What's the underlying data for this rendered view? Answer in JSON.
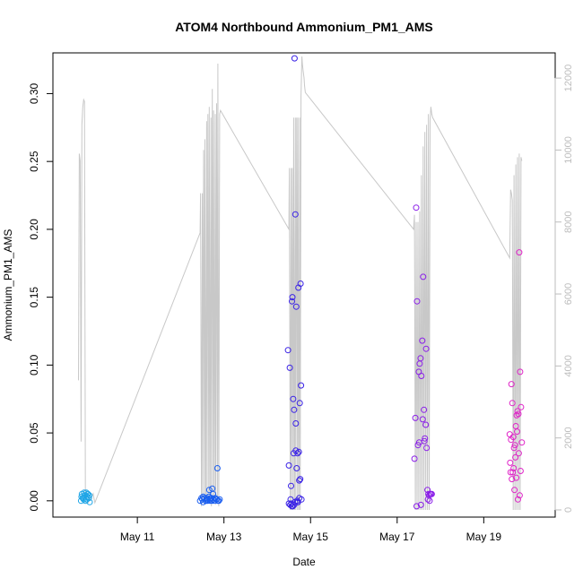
{
  "chart_data": {
    "type": "scatter",
    "title": "ATOM4 Northbound Ammonium_PM1_AMS",
    "xlabel": "Date",
    "ylabel": "Ammonium_PM1_AMS",
    "x_unit": "day of May",
    "xlim": [
      9.05,
      20.65
    ],
    "ylim": [
      -0.012,
      0.33
    ],
    "y2lim": [
      -200,
      12700
    ],
    "x_ticks": [
      {
        "value": 11,
        "label": "May 11"
      },
      {
        "value": 13,
        "label": "May 13"
      },
      {
        "value": 15,
        "label": "May 15"
      },
      {
        "value": 17,
        "label": "May 17"
      },
      {
        "value": 19,
        "label": "May 19"
      }
    ],
    "y_ticks": [
      {
        "value": 0.0,
        "label": "0.00"
      },
      {
        "value": 0.05,
        "label": "0.05"
      },
      {
        "value": 0.1,
        "label": "0.10"
      },
      {
        "value": 0.15,
        "label": "0.15"
      },
      {
        "value": 0.2,
        "label": "0.20"
      },
      {
        "value": 0.25,
        "label": "0.25"
      },
      {
        "value": 0.3,
        "label": "0.30"
      }
    ],
    "y2_ticks": [
      {
        "value": 0,
        "label": "0"
      },
      {
        "value": 2000,
        "label": "2000"
      },
      {
        "value": 4000,
        "label": "4000"
      },
      {
        "value": 6000,
        "label": "6000"
      },
      {
        "value": 8000,
        "label": "8000"
      },
      {
        "value": 10000,
        "label": "10000"
      },
      {
        "value": 12000,
        "label": "12000"
      }
    ],
    "grid": false,
    "legend": "none",
    "colors": {
      "altitude_line": "#c8c8c8",
      "flight1": "#1ea5e6",
      "flight2": "#1a5ef0",
      "flight3": "#3a22e6",
      "flight4": "#8a1ee8",
      "flight5": "#e024c8",
      "axis": "#000000",
      "right_axis": "#bdbdbd"
    },
    "points": [
      {
        "flight": 1,
        "color": "#1ea5e6",
        "x": [
          9.7,
          9.72,
          9.74,
          9.76,
          9.78,
          9.8,
          9.82,
          9.84,
          9.86,
          9.88,
          9.9,
          9.71,
          9.77,
          9.83,
          9.89,
          9.75,
          9.85
        ],
        "y": [
          0.0,
          0.005,
          0.002,
          0.001,
          0.004,
          0.0,
          0.006,
          0.003,
          0.005,
          0.002,
          -0.001,
          0.003,
          0.006,
          0.001,
          0.004,
          0.002,
          0.005
        ]
      },
      {
        "flight": 2,
        "color": "#1a5ef0",
        "x": [
          12.45,
          12.5,
          12.52,
          12.55,
          12.58,
          12.6,
          12.62,
          12.65,
          12.68,
          12.7,
          12.72,
          12.75,
          12.78,
          12.8,
          12.82,
          12.85,
          12.88,
          12.9,
          12.52,
          12.6,
          12.68,
          12.75,
          12.83,
          12.48,
          12.58,
          12.66,
          12.73,
          12.86,
          12.63,
          12.71
        ],
        "y": [
          0.0,
          0.001,
          -0.001,
          0.002,
          0.0,
          0.001,
          0.0,
          0.003,
          0.001,
          0.002,
          0.0,
          0.001,
          0.0,
          0.002,
          0.001,
          0.024,
          0.0,
          0.001,
          0.003,
          0.002,
          0.0,
          0.005,
          0.001,
          0.002,
          0.0,
          0.008,
          0.009,
          0.0,
          0.001,
          0.002
        ]
      },
      {
        "flight": 3,
        "color": "#3a22e6",
        "x": [
          14.48,
          14.5,
          14.52,
          14.55,
          14.57,
          14.58,
          14.6,
          14.62,
          14.63,
          14.65,
          14.67,
          14.7,
          14.72,
          14.73,
          14.75,
          14.77,
          14.78,
          14.53,
          14.56,
          14.61,
          14.64,
          14.68,
          14.71,
          14.74,
          14.5,
          14.59,
          14.66,
          14.7,
          14.76,
          14.54,
          14.62,
          14.69,
          14.74,
          14.57,
          14.66,
          14.79
        ],
        "y": [
          0.111,
          0.026,
          0.098,
          0.011,
          0.147,
          0.15,
          0.075,
          0.067,
          0.326,
          0.211,
          0.143,
          0.035,
          0.157,
          0.036,
          0.072,
          0.16,
          0.085,
          -0.003,
          -0.002,
          0.035,
          -0.001,
          0.024,
          -0.001,
          0.015,
          -0.002,
          -0.004,
          0.057,
          -0.001,
          0.016,
          0.001,
          -0.003,
          0.0,
          0.002,
          -0.004,
          0.037,
          0.001
        ]
      },
      {
        "flight": 4,
        "color": "#8a1ee8",
        "x": [
          17.4,
          17.42,
          17.44,
          17.46,
          17.48,
          17.5,
          17.52,
          17.54,
          17.56,
          17.58,
          17.6,
          17.62,
          17.64,
          17.66,
          17.68,
          17.7,
          17.72,
          17.74,
          17.76,
          17.78,
          17.8,
          17.45,
          17.55,
          17.63,
          17.71,
          17.51,
          17.59,
          17.67,
          17.75
        ],
        "y": [
          0.031,
          0.061,
          0.216,
          0.147,
          0.041,
          0.095,
          0.101,
          0.105,
          0.092,
          0.118,
          0.165,
          0.067,
          0.046,
          0.056,
          0.039,
          0.008,
          0.005,
          0.004,
          0.005,
          0.005,
          0.005,
          -0.004,
          -0.003,
          0.044,
          0.001,
          0.043,
          0.06,
          0.112,
          0.0
        ]
      },
      {
        "flight": 5,
        "color": "#e024c8",
        "x": [
          19.6,
          19.62,
          19.64,
          19.66,
          19.68,
          19.7,
          19.72,
          19.74,
          19.76,
          19.78,
          19.8,
          19.82,
          19.84,
          19.86,
          19.65,
          19.69,
          19.73,
          19.77,
          19.81,
          19.85,
          19.63,
          19.67,
          19.71,
          19.75,
          19.79,
          19.83,
          19.61,
          19.88
        ],
        "y": [
          0.049,
          0.021,
          0.086,
          0.072,
          0.047,
          0.039,
          0.041,
          0.055,
          0.063,
          0.066,
          0.064,
          0.183,
          0.095,
          0.069,
          0.016,
          0.024,
          0.032,
          0.051,
          0.035,
          0.022,
          0.045,
          0.021,
          0.008,
          0.017,
          0.001,
          0.004,
          0.028,
          0.043
        ]
      }
    ],
    "altitude_line": {
      "x": [
        9.64,
        9.66,
        9.68,
        9.7,
        9.72,
        9.74,
        9.76,
        9.78,
        9.8,
        9.82,
        9.84,
        9.86,
        9.88,
        9.9,
        9.92,
        9.94,
        9.96,
        9.98,
        10.0,
        10.02,
        12.45,
        12.46,
        12.48,
        12.5,
        12.51,
        12.53,
        12.55,
        12.56,
        12.58,
        12.6,
        12.61,
        12.63,
        12.65,
        12.66,
        12.68,
        12.7,
        12.71,
        12.73,
        12.75,
        12.76,
        12.78,
        12.8,
        12.81,
        12.83,
        12.85,
        12.86,
        12.88,
        12.9,
        12.92,
        14.5,
        14.51,
        14.53,
        14.55,
        14.56,
        14.58,
        14.6,
        14.61,
        14.63,
        14.65,
        14.66,
        14.68,
        14.7,
        14.71,
        14.73,
        14.75,
        14.76,
        14.78,
        14.8,
        14.81,
        14.83,
        14.85,
        14.86,
        14.88,
        17.38,
        17.4,
        17.42,
        17.44,
        17.46,
        17.48,
        17.5,
        17.52,
        17.54,
        17.56,
        17.58,
        17.6,
        17.62,
        17.64,
        17.66,
        17.68,
        17.7,
        17.72,
        17.74,
        17.76,
        17.78,
        17.8,
        17.82,
        19.6,
        19.62,
        19.64,
        19.66,
        19.68,
        19.7,
        19.72,
        19.74,
        19.76,
        19.78,
        19.8,
        19.82,
        19.84,
        19.86,
        19.88
      ],
      "y": [
        3600,
        9900,
        9700,
        1900,
        10700,
        11200,
        11400,
        11350,
        400,
        350,
        300,
        200,
        250,
        300,
        300,
        350,
        400,
        450,
        300,
        200,
        7700,
        8800,
        100,
        8800,
        300,
        10000,
        150,
        10300,
        200,
        10800,
        200,
        11000,
        300,
        11200,
        200,
        10900,
        100,
        11700,
        200,
        11100,
        300,
        11000,
        150,
        11300,
        200,
        12400,
        100,
        11000,
        11100,
        7800,
        9500,
        0,
        9500,
        0,
        9500,
        0,
        10900,
        0,
        10900,
        0,
        10900,
        0,
        10900,
        0,
        10900,
        0,
        11500,
        12600,
        12400,
        12200,
        12000,
        11800,
        11600,
        7800,
        8200,
        0,
        8000,
        0,
        8000,
        0,
        8300,
        0,
        9300,
        0,
        10100,
        0,
        10500,
        0,
        10700,
        0,
        11000,
        0,
        10800,
        11200,
        11000,
        10900,
        7000,
        8900,
        8800,
        8600,
        0,
        9300,
        0,
        9600,
        0,
        9800,
        0,
        9900,
        0,
        9800,
        9700
      ]
    }
  }
}
